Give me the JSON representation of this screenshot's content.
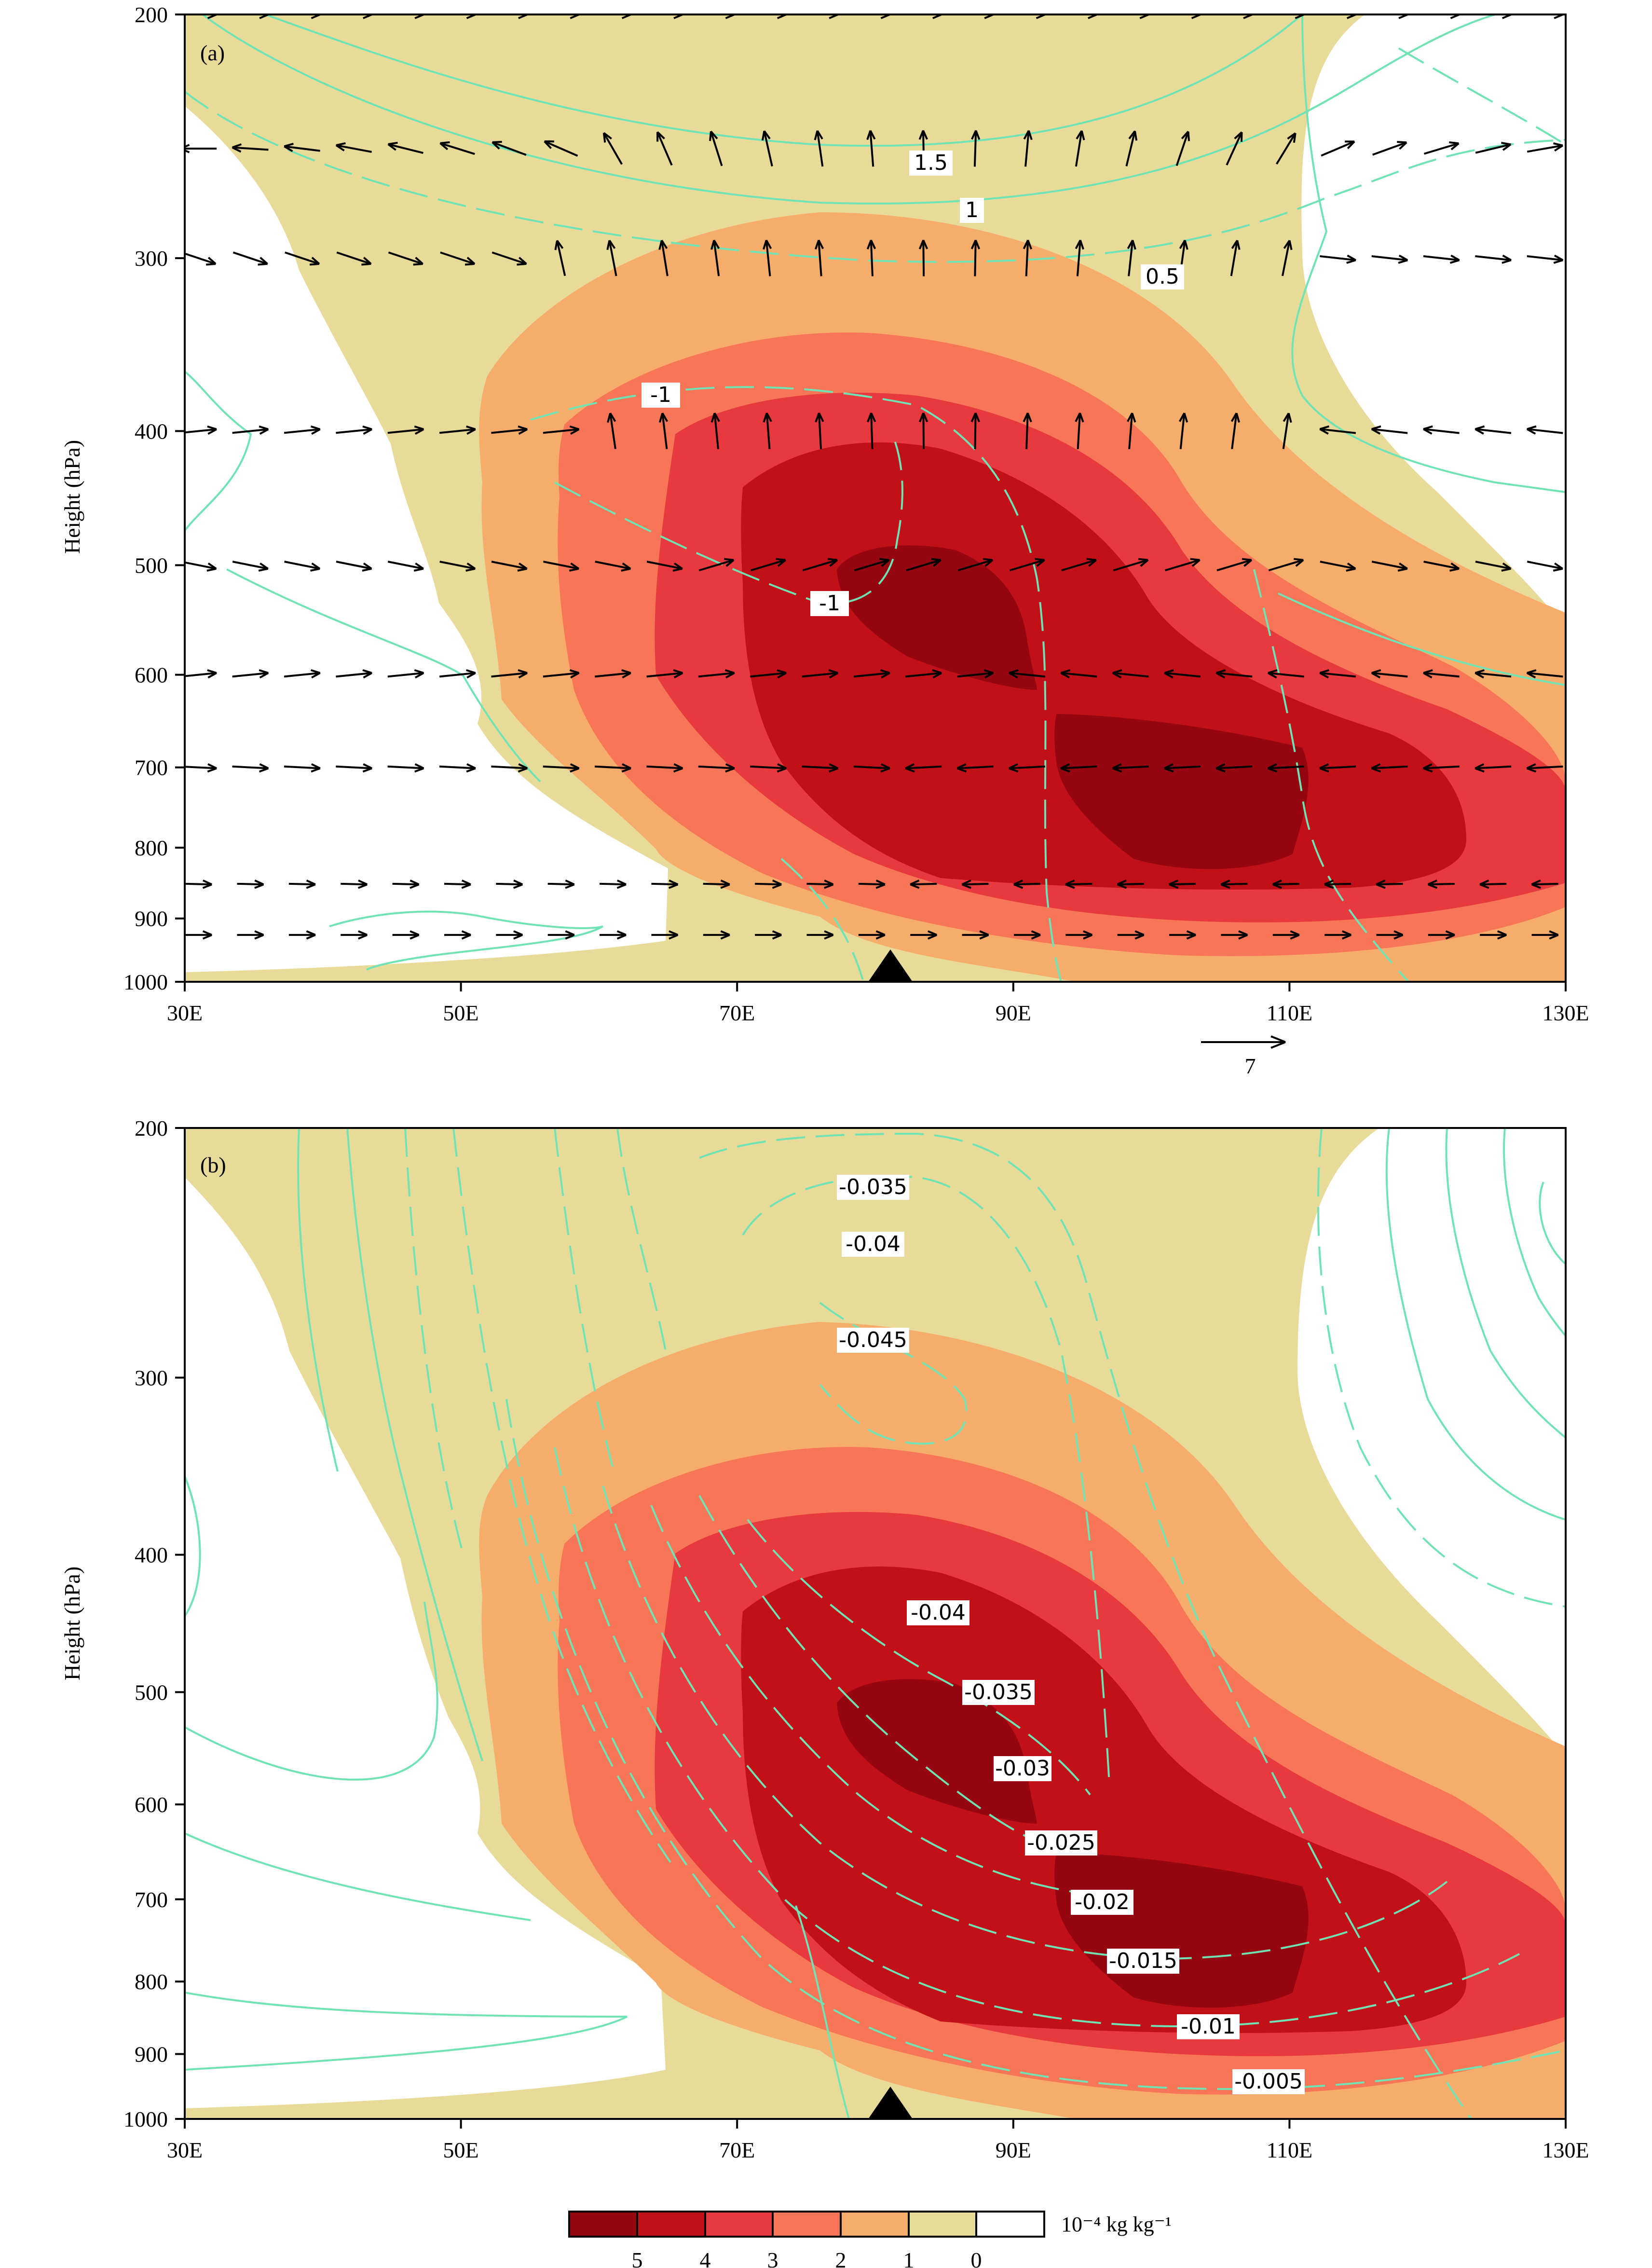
{
  "figure": {
    "panels": [
      "(a)",
      "(b)"
    ],
    "colors": {
      "level0": "#ffffff",
      "level1": "#e8db9a",
      "level2": "#f6ad6b",
      "level3": "#f77657",
      "level4": "#e7393e",
      "level5": "#c21019",
      "level6": "#950610",
      "contour": "#6fe3b4",
      "arrow": "#000000"
    },
    "colorbar": {
      "tick_labels": [
        "5",
        "4",
        "3",
        "2",
        "1",
        "0"
      ],
      "unit": "10⁻⁴ kg kg⁻¹"
    },
    "reference_vector": {
      "label": "7"
    }
  },
  "chart_data": [
    {
      "type": "contour",
      "panel": "(a)",
      "ylabel": "Height (hPa)",
      "xlabel": "",
      "x_ticks": [
        "30E",
        "50E",
        "70E",
        "90E",
        "110E",
        "130E"
      ],
      "x_range": [
        30,
        130
      ],
      "y_ticks": [
        "200",
        "300",
        "400",
        "500",
        "600",
        "700",
        "800",
        "900",
        "1000"
      ],
      "y_range": [
        1000,
        200
      ],
      "y_scale": "log-pressure",
      "shading": "specific humidity anomaly, 10^-4 kg kg^-1",
      "shading_levels": [
        0,
        1,
        2,
        3,
        4,
        5
      ],
      "shading_maximum": {
        "lon": 85,
        "p": 540
      },
      "secondary_maximum": {
        "lon": 103,
        "p": 760
      },
      "contour_labels": [
        "1.5",
        "1",
        "0.5",
        "-1",
        "-1"
      ],
      "vectors": "zonal-vertical circulation",
      "reference_vector": "7",
      "terrain_marker_lon": 81
    },
    {
      "type": "contour",
      "panel": "(b)",
      "ylabel": "Height (hPa)",
      "xlabel": "",
      "x_ticks": [
        "30E",
        "50E",
        "70E",
        "90E",
        "110E",
        "130E"
      ],
      "x_range": [
        30,
        130
      ],
      "y_ticks": [
        "200",
        "300",
        "400",
        "500",
        "600",
        "700",
        "800",
        "900",
        "1000"
      ],
      "y_range": [
        1000,
        200
      ],
      "y_scale": "log-pressure",
      "shading": "specific humidity anomaly, 10^-4 kg kg^-1",
      "shading_levels": [
        0,
        1,
        2,
        3,
        4,
        5
      ],
      "contour_labels": [
        "-0.035",
        "-0.04",
        "-0.045",
        "-0.04",
        "-0.035",
        "-0.03",
        "-0.025",
        "-0.02",
        "-0.015",
        "-0.01",
        "-0.005"
      ],
      "terrain_marker_lon": 81
    }
  ]
}
